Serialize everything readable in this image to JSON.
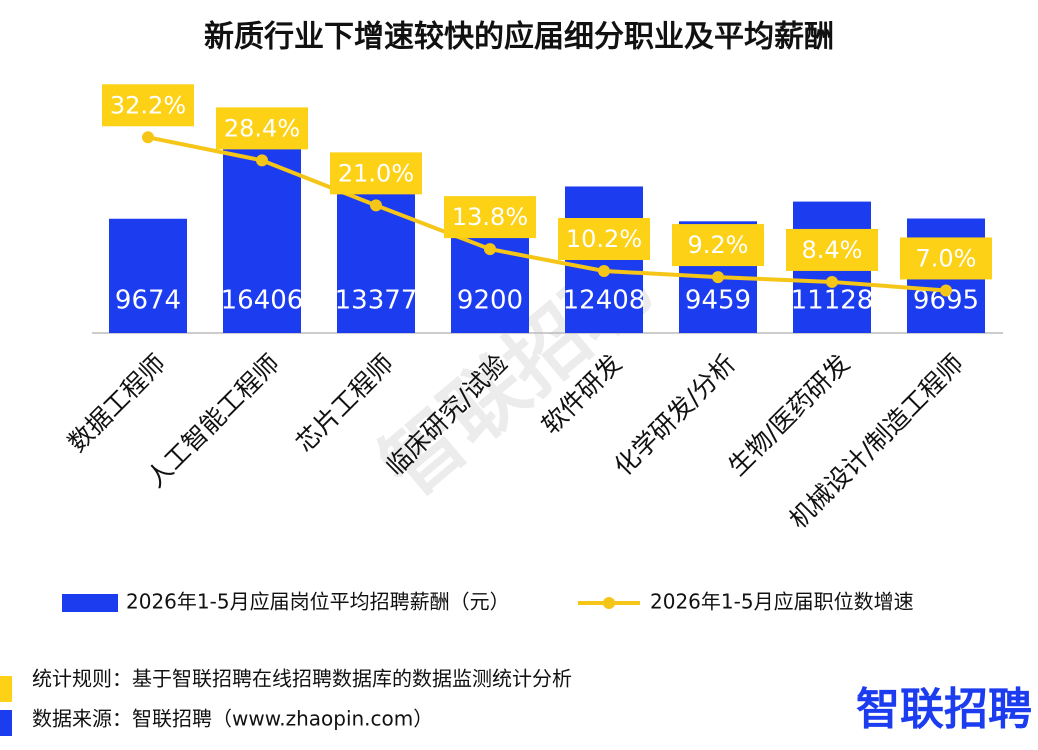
{
  "chart_data": {
    "type": "bar_line",
    "title": "新质行业下增速较快的应届细分职业及平均薪酬",
    "categories": [
      "数据工程师",
      "人工智能工程师",
      "芯片工程师",
      "临床研究/试验",
      "软件研发",
      "化学研发/分析",
      "生物/医药研发",
      "机械设计/制造工程师"
    ],
    "series": [
      {
        "name": "2026年1-5月应届岗位平均招聘薪酬（元）",
        "type": "bar",
        "color": "#1c3cf0",
        "values": [
          9674,
          16406,
          13377,
          9200,
          12408,
          9459,
          11128,
          9695
        ]
      },
      {
        "name": "2026年1-5月应届职位数增速",
        "type": "line",
        "axis": "y2",
        "color": "#f5c518",
        "values": [
          32.2,
          28.4,
          21.0,
          13.8,
          10.2,
          9.2,
          8.4,
          7.0
        ],
        "value_labels": [
          "32.2%",
          "28.4%",
          "21.0%",
          "13.8%",
          "10.2%",
          "9.2%",
          "8.4%",
          "7.0%"
        ]
      }
    ],
    "ylim": [
      0,
      21000
    ],
    "y2lim": [
      0,
      40.8
    ],
    "legend": "bottom"
  },
  "watermark": "智联招聘",
  "footer": {
    "rule": "统计规则：基于智联招聘在线招聘数据库的数据监测统计分析",
    "source": "数据来源：智联招聘（www.zhaopin.com）",
    "logo": "智联招聘"
  }
}
